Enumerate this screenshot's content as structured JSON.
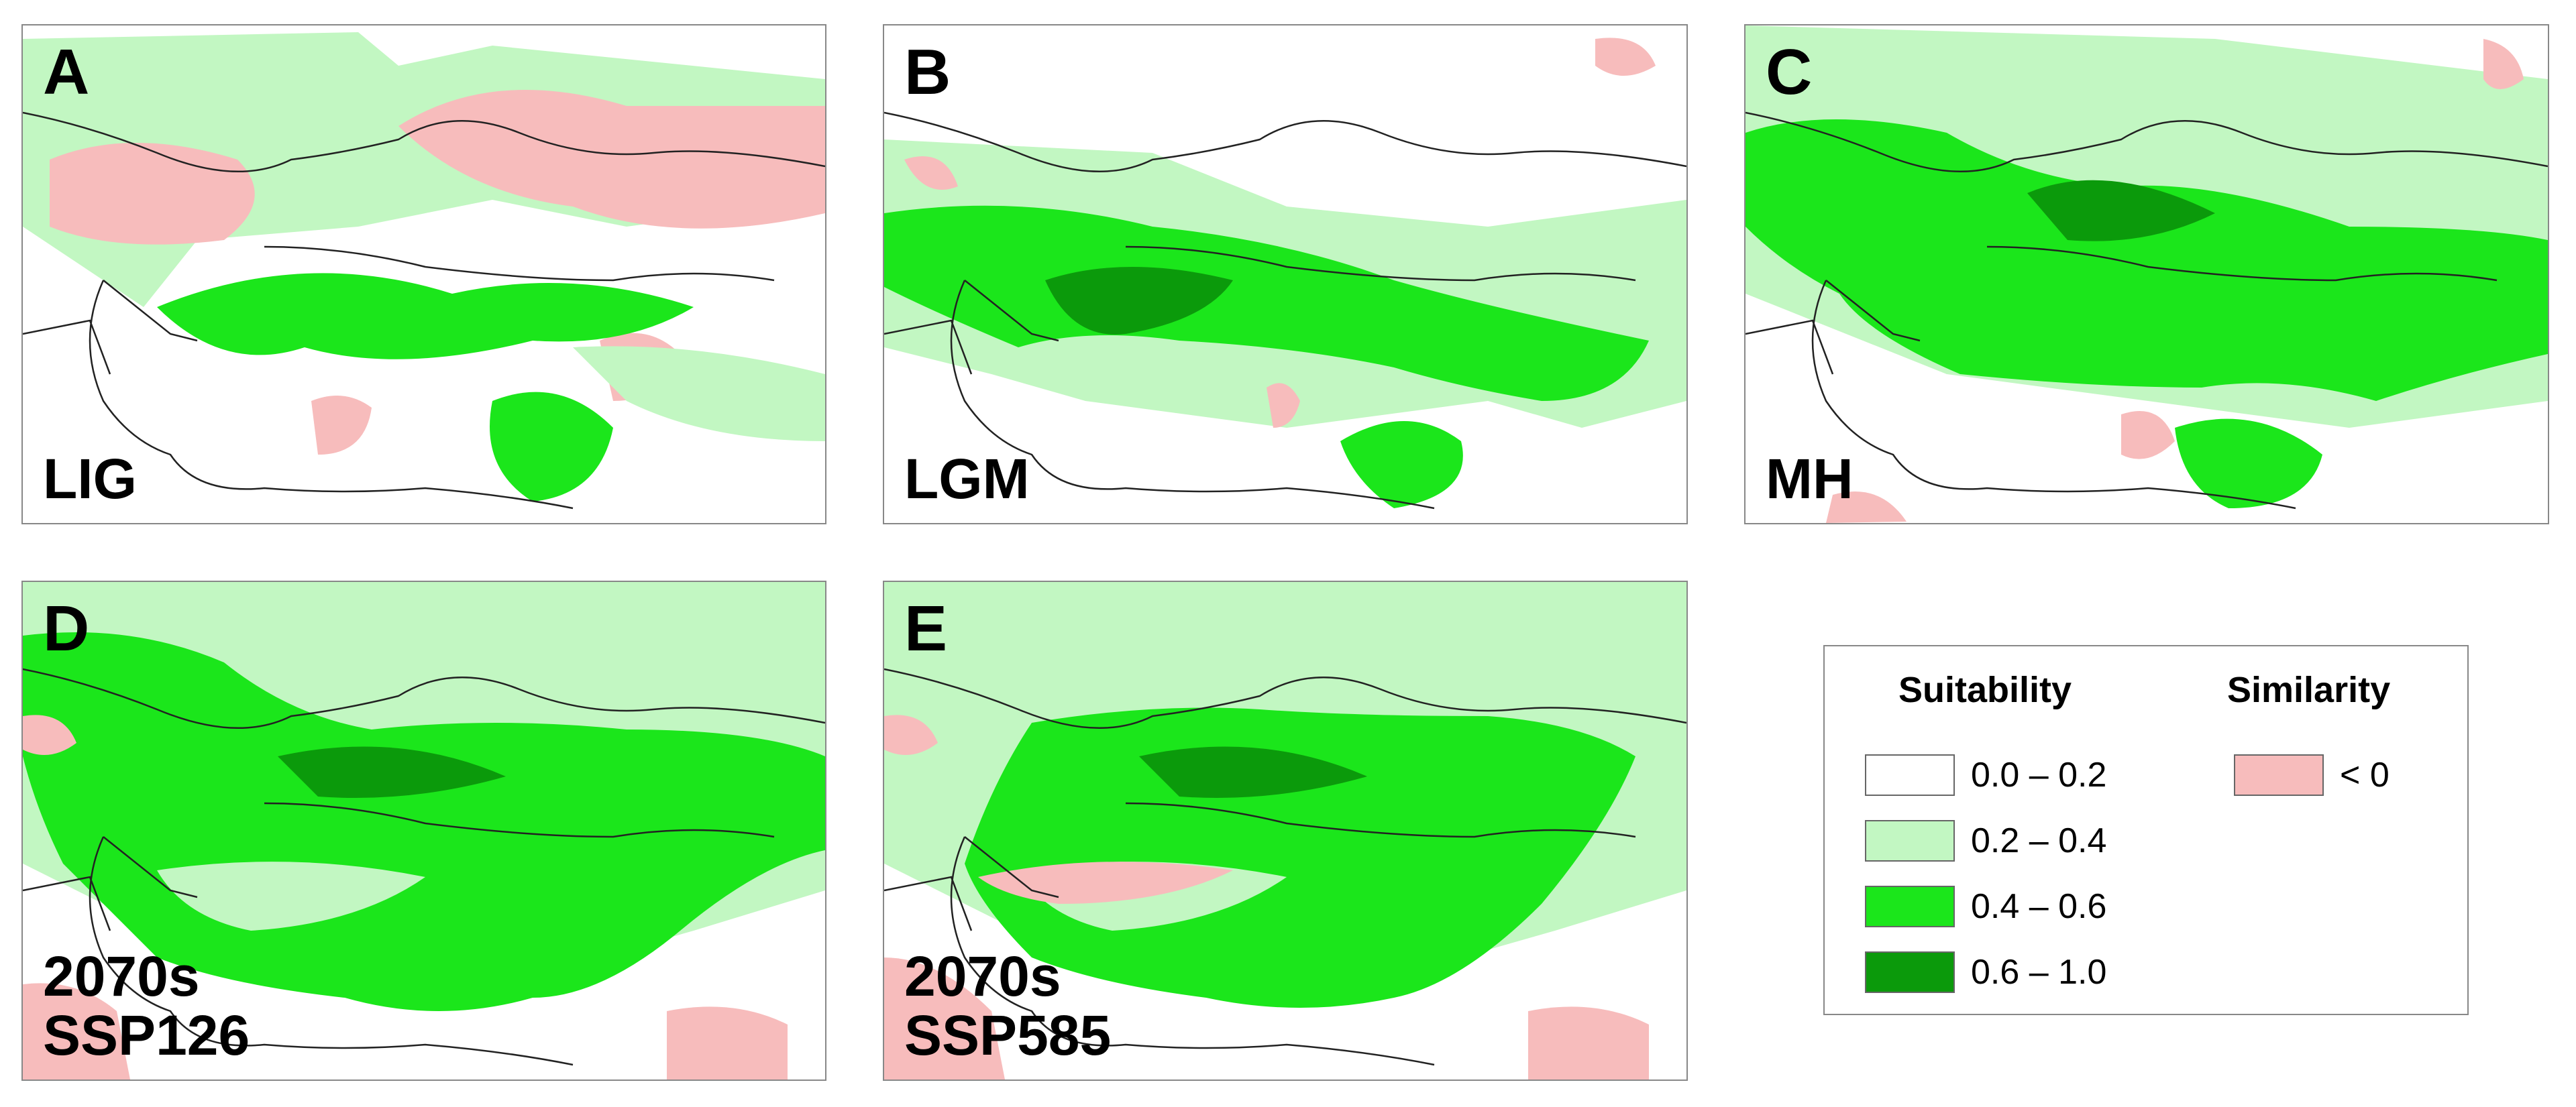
{
  "figure": {
    "panels": [
      {
        "letter": "A",
        "period": "LIG"
      },
      {
        "letter": "B",
        "period": "LGM"
      },
      {
        "letter": "C",
        "period": "MH"
      },
      {
        "letter": "D",
        "period_line1": "2070s",
        "period_line2": "SSP126"
      },
      {
        "letter": "E",
        "period_line1": "2070s",
        "period_line2": "SSP585"
      }
    ]
  },
  "legend": {
    "suitability_title": "Suitability",
    "similarity_title": "Similarity",
    "suitability_classes": [
      {
        "label": "0.0 – 0.2",
        "color": "#ffffff"
      },
      {
        "label": "0.2 – 0.4",
        "color": "#c2f7c2"
      },
      {
        "label": "0.4 – 0.6",
        "color": "#1be61b"
      },
      {
        "label": "0.6 – 1.0",
        "color": "#0b9a0b"
      }
    ],
    "similarity_classes": [
      {
        "label": "< 0",
        "color": "#f7bcbc"
      }
    ]
  },
  "colors": {
    "border": "#222222",
    "light_green": "#c2f7c2",
    "green": "#1be61b",
    "dark_green": "#0b9a0b",
    "pink": "#f7bcbc"
  }
}
